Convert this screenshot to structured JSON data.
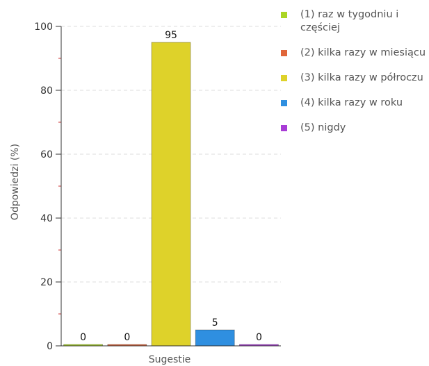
{
  "chart_data": {
    "type": "bar",
    "categories": [
      "Sugestie"
    ],
    "series": [
      {
        "name": "(1) raz w tygodniu i częściej",
        "values": [
          0
        ],
        "color": "#aad524"
      },
      {
        "name": "(2) kilka razy w miesiącu",
        "values": [
          0
        ],
        "color": "#e0663a"
      },
      {
        "name": "(3) kilka razy w półroczu",
        "values": [
          95
        ],
        "color": "#ded22a"
      },
      {
        "name": "(4) kilka razy w roku",
        "values": [
          5
        ],
        "color": "#2f8fe0"
      },
      {
        "name": "(5) nigdy",
        "values": [
          0
        ],
        "color": "#a83cd6"
      }
    ],
    "data_labels": [
      "0",
      "0",
      "95",
      "5",
      "0"
    ],
    "xlabel": "Sugestie",
    "ylabel": "Odpowiedzi (%)",
    "ylim": [
      0,
      100
    ],
    "yticks": [
      0,
      20,
      40,
      60,
      80,
      100
    ],
    "grid": true,
    "legend_position": "right"
  }
}
